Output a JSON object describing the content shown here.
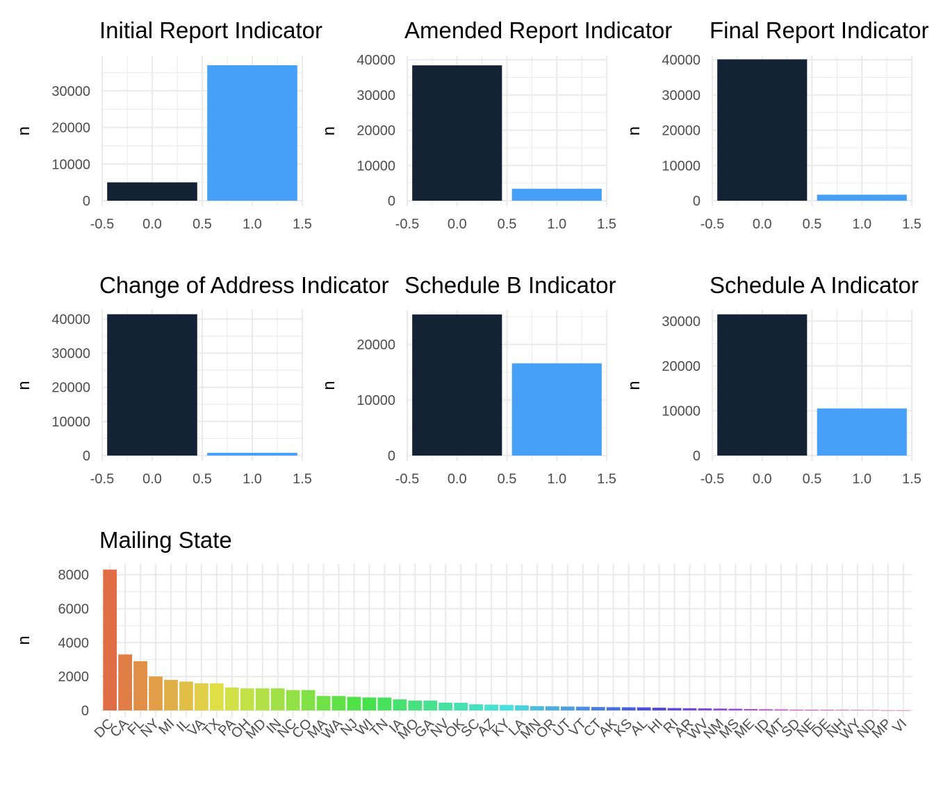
{
  "colors": {
    "dark": "#132235",
    "light": "#47a0f7"
  },
  "panels": [
    {
      "title": "Initial Report Indicator",
      "ylabel": "n",
      "ymax": 38500,
      "yticks": [
        0,
        10000,
        20000,
        30000
      ],
      "xlim": [
        -0.5,
        1.5
      ],
      "xticks": [
        -0.5,
        0.0,
        0.5,
        1.0,
        1.5
      ],
      "xtick_labels": [
        "-0.5",
        "0.0",
        "0.5",
        "1.0",
        "1.5"
      ],
      "bars": [
        {
          "x": 0,
          "value": 5000
        },
        {
          "x": 1,
          "value": 37000
        }
      ]
    },
    {
      "title": "Amended Report Indicator",
      "ylabel": "n",
      "ymax": 40000,
      "yticks": [
        0,
        10000,
        20000,
        30000,
        40000
      ],
      "xlim": [
        -0.5,
        1.5
      ],
      "xticks": [
        -0.5,
        0.0,
        0.5,
        1.0,
        1.5
      ],
      "xtick_labels": [
        "-0.5",
        "0.0",
        "0.5",
        "1.0",
        "1.5"
      ],
      "bars": [
        {
          "x": 0,
          "value": 38400
        },
        {
          "x": 1,
          "value": 3400
        }
      ]
    },
    {
      "title": "Final Report Indicator",
      "ylabel": "n",
      "ymax": 40000,
      "yticks": [
        0,
        10000,
        20000,
        30000,
        40000
      ],
      "xlim": [
        -0.5,
        1.5
      ],
      "xticks": [
        -0.5,
        0.0,
        0.5,
        1.0,
        1.5
      ],
      "xtick_labels": [
        "-0.5",
        "0.0",
        "0.5",
        "1.0",
        "1.5"
      ],
      "bars": [
        {
          "x": 0,
          "value": 40100
        },
        {
          "x": 1,
          "value": 1700
        }
      ]
    },
    {
      "title": "Change of Address Indicator",
      "ylabel": "n",
      "ymax": 41500,
      "yticks": [
        0,
        10000,
        20000,
        30000,
        40000
      ],
      "xlim": [
        -0.5,
        1.5
      ],
      "xticks": [
        -0.5,
        0.0,
        0.5,
        1.0,
        1.5
      ],
      "xtick_labels": [
        "-0.5",
        "0.0",
        "0.5",
        "1.0",
        "1.5"
      ],
      "bars": [
        {
          "x": 0,
          "value": 41400
        },
        {
          "x": 1,
          "value": 800
        }
      ]
    },
    {
      "title": "Schedule B Indicator",
      "ylabel": "n",
      "ymax": 25500,
      "yticks": [
        0,
        10000,
        20000
      ],
      "xlim": [
        -0.5,
        1.5
      ],
      "xticks": [
        -0.5,
        0.0,
        0.5,
        1.0,
        1.5
      ],
      "xtick_labels": [
        "-0.5",
        "0.0",
        "0.5",
        "1.0",
        "1.5"
      ],
      "bars": [
        {
          "x": 0,
          "value": 25400
        },
        {
          "x": 1,
          "value": 16600
        }
      ]
    },
    {
      "title": "Schedule A Indicator",
      "ylabel": "n",
      "ymax": 31600,
      "yticks": [
        0,
        10000,
        20000,
        30000
      ],
      "xlim": [
        -0.5,
        1.5
      ],
      "xticks": [
        -0.5,
        0.0,
        0.5,
        1.0,
        1.5
      ],
      "xtick_labels": [
        "-0.5",
        "0.0",
        "0.5",
        "1.0",
        "1.5"
      ],
      "bars": [
        {
          "x": 0,
          "value": 31500
        },
        {
          "x": 1,
          "value": 10500
        }
      ]
    }
  ],
  "state_panel": {
    "title": "Mailing State",
    "ylabel": "n",
    "ymax": 8350,
    "yticks": [
      0,
      2000,
      4000,
      6000,
      8000
    ]
  },
  "chart_data": [
    {
      "type": "bar",
      "title": "Initial Report Indicator",
      "ylabel": "n",
      "x": [
        0,
        1
      ],
      "values": [
        5000,
        37000
      ],
      "xlim": [
        -0.5,
        1.5
      ],
      "grid": true
    },
    {
      "type": "bar",
      "title": "Amended Report Indicator",
      "ylabel": "n",
      "x": [
        0,
        1
      ],
      "values": [
        38400,
        3400
      ],
      "xlim": [
        -0.5,
        1.5
      ],
      "grid": true
    },
    {
      "type": "bar",
      "title": "Final Report Indicator",
      "ylabel": "n",
      "x": [
        0,
        1
      ],
      "values": [
        40100,
        1700
      ],
      "xlim": [
        -0.5,
        1.5
      ],
      "grid": true
    },
    {
      "type": "bar",
      "title": "Change of Address Indicator",
      "ylabel": "n",
      "x": [
        0,
        1
      ],
      "values": [
        41400,
        800
      ],
      "xlim": [
        -0.5,
        1.5
      ],
      "grid": true
    },
    {
      "type": "bar",
      "title": "Schedule B Indicator",
      "ylabel": "n",
      "x": [
        0,
        1
      ],
      "values": [
        25400,
        16600
      ],
      "xlim": [
        -0.5,
        1.5
      ],
      "grid": true
    },
    {
      "type": "bar",
      "title": "Schedule A Indicator",
      "ylabel": "n",
      "x": [
        0,
        1
      ],
      "values": [
        31500,
        10500
      ],
      "xlim": [
        -0.5,
        1.5
      ],
      "grid": true
    },
    {
      "type": "bar",
      "title": "Mailing State",
      "ylabel": "n",
      "categories": [
        "DC",
        "CA",
        "FL",
        "NY",
        "MI",
        "IL",
        "VA",
        "TX",
        "PA",
        "OH",
        "MD",
        "IN",
        "NC",
        "CO",
        "MA",
        "WA",
        "NJ",
        "WI",
        "TN",
        "IA",
        "MO",
        "GA",
        "NV",
        "OK",
        "SC",
        "AZ",
        "KY",
        "LA",
        "MN",
        "OR",
        "UT",
        "VT",
        "CT",
        "AK",
        "KS",
        "AL",
        "HI",
        "RI",
        "AR",
        "WV",
        "NM",
        "MS",
        "ME",
        "ID",
        "MT",
        "SD",
        "NE",
        "DE",
        "NH",
        "WY",
        "ND",
        "MP",
        "VI"
      ],
      "values": [
        8300,
        3300,
        2900,
        2000,
        1800,
        1700,
        1600,
        1600,
        1350,
        1300,
        1300,
        1300,
        1200,
        1200,
        850,
        850,
        800,
        760,
        760,
        650,
        580,
        580,
        460,
        450,
        360,
        340,
        320,
        300,
        250,
        240,
        230,
        220,
        200,
        190,
        185,
        180,
        160,
        140,
        130,
        120,
        110,
        100,
        80,
        70,
        60,
        45,
        40,
        35,
        30,
        25,
        20,
        5,
        3
      ],
      "ylim": [
        0,
        8350
      ],
      "grid": true,
      "legend": "none"
    }
  ]
}
